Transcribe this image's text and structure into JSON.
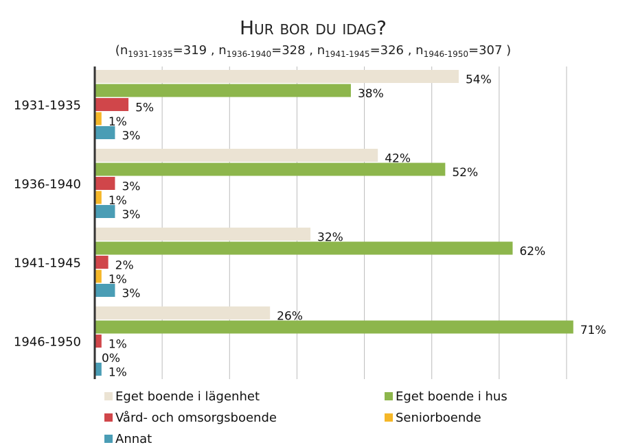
{
  "chart_data": {
    "type": "hbar",
    "title": "Hur bor du idag?",
    "subtitle": {
      "open": "(",
      "items": [
        {
          "text": "n",
          "sub": "1931-1935",
          "after": "=319 , "
        },
        {
          "text": "n",
          "sub": "1936-1940",
          "after": "=328 , "
        },
        {
          "text": "n",
          "sub": "1941-1945",
          "after": "=326 , "
        },
        {
          "text": "n",
          "sub": "1946-1950",
          "after": "=307 )"
        }
      ]
    },
    "categories": [
      "1931-1935",
      "1936-1940",
      "1941-1945",
      "1946-1950"
    ],
    "series": [
      {
        "name": "Eget boende i lägenhet",
        "color": "#ebe3d3",
        "values": [
          54,
          42,
          32,
          26
        ],
        "value_labels": [
          "54%",
          "42%",
          "32%",
          "26%"
        ]
      },
      {
        "name": "Eget boende i hus",
        "color": "#8db64c",
        "values": [
          38,
          52,
          62,
          71
        ],
        "value_labels": [
          "38%",
          "52%",
          "62%",
          "71%"
        ]
      },
      {
        "name": "Vård- och omsorgsboende",
        "color": "#d0464a",
        "values": [
          5,
          3,
          2,
          1
        ],
        "value_labels": [
          "5%",
          "3%",
          "2%",
          "1%"
        ]
      },
      {
        "name": "Seniorboende",
        "color": "#f5b728",
        "values": [
          1,
          1,
          1,
          0
        ],
        "value_labels": [
          "1%",
          "1%",
          "1%",
          "0%"
        ]
      },
      {
        "name": "Annat",
        "color": "#4a9db5",
        "values": [
          3,
          3,
          3,
          1
        ],
        "value_labels": [
          "3%",
          "3%",
          "3%",
          "1%"
        ]
      }
    ],
    "xlim": [
      0,
      70
    ],
    "xticks": [
      0,
      10,
      20,
      30,
      40,
      50,
      60,
      70
    ],
    "grid": true,
    "legend": "bottom"
  }
}
